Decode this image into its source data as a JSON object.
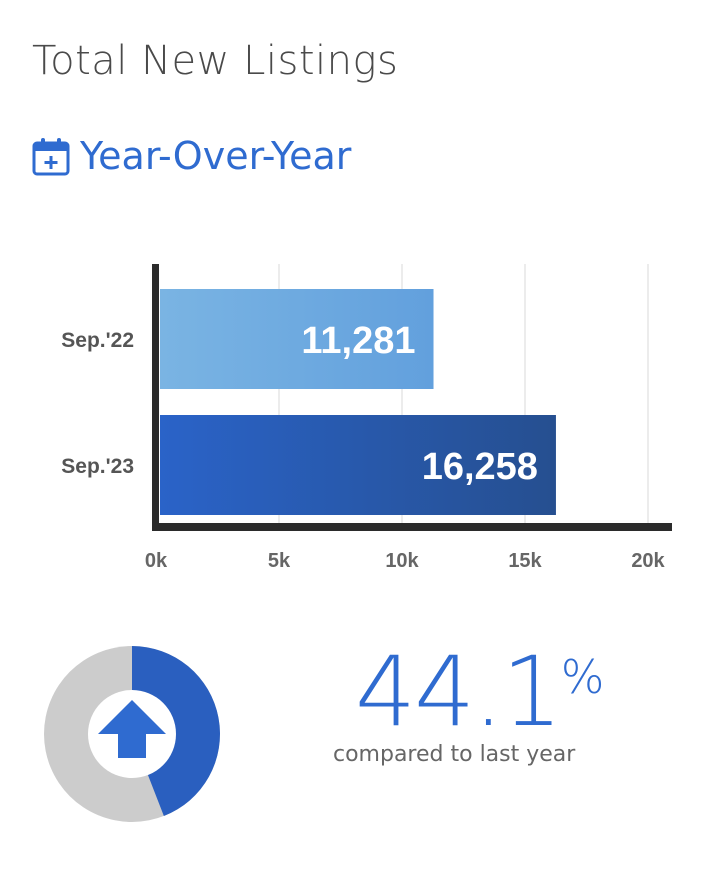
{
  "header": {
    "title": "Total New Listings",
    "subtitle": "Year-Over-Year",
    "subtitle_icon": "calendar-plus-icon"
  },
  "chart_data": {
    "type": "bar",
    "orientation": "horizontal",
    "categories": [
      "Sep.'22",
      "Sep.'23"
    ],
    "values": [
      11281,
      16258
    ],
    "value_labels": [
      "11,281",
      "16,258"
    ],
    "xlim": [
      0,
      20000
    ],
    "xticks": [
      0,
      5000,
      10000,
      15000,
      20000
    ],
    "xtick_labels": [
      "0k",
      "5k",
      "10k",
      "15k",
      "20k"
    ],
    "grid": true,
    "colors": [
      "#72ade1",
      "#2a57ad"
    ]
  },
  "summary": {
    "percent": "44.1",
    "percent_sign": "%",
    "caption": "compared to last year",
    "direction_icon": "arrow-up-icon",
    "donut_fraction": 0.441,
    "colors": {
      "accent": "#2f6bd0",
      "track": "#cccccc"
    }
  }
}
